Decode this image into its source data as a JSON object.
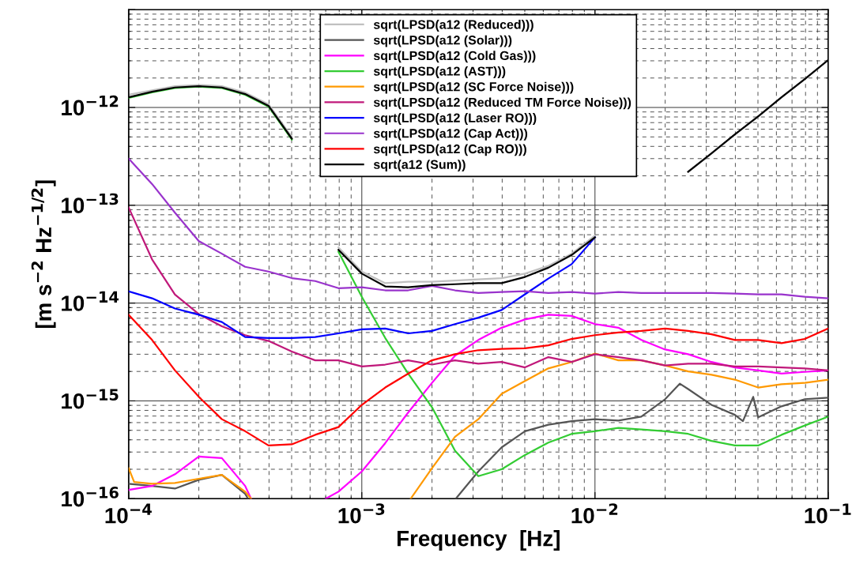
{
  "chart_data": {
    "type": "line",
    "xlabel": "Frequency  [Hz]",
    "ylabel": "[m s$^{−2}$ Hz$^{−1/2}$]",
    "log": "xy",
    "grid": true,
    "legend": "top",
    "line_style": "solid",
    "marker": "none",
    "xlim": [
      0.0001,
      0.1
    ],
    "ylim": [
      1e-16,
      1e-11
    ],
    "xticks": [
      {
        "value": 0.0001,
        "label": "10$^{−4}$"
      },
      {
        "value": 0.001,
        "label": "10$^{−3}$"
      },
      {
        "value": 0.01,
        "label": "10$^{−2}$"
      },
      {
        "value": 0.1,
        "label": "10$^{−1}$"
      }
    ],
    "yticks": [
      {
        "value": 1e-16,
        "label": "10$^{−16}$"
      },
      {
        "value": 1e-15,
        "label": "10$^{−15}$"
      },
      {
        "value": 1e-14,
        "label": "10$^{−14}$"
      },
      {
        "value": 1e-13,
        "label": "10$^{−13}$"
      },
      {
        "value": 1e-12,
        "label": "10$^{−12}$"
      },
      {
        "value": 1e-11,
        "label": null
      }
    ],
    "x": [
      0.0001,
      0.000126,
      0.000158,
      0.0002,
      0.000251,
      0.000316,
      0.000398,
      0.000501,
      0.000631,
      0.000794,
      0.001,
      0.00126,
      0.00158,
      0.002,
      0.00251,
      0.00316,
      0.00398,
      0.00501,
      0.00631,
      0.00794,
      0.01,
      0.0126,
      0.0158,
      0.02,
      0.0251,
      0.0316,
      0.0398,
      0.0501,
      0.0631,
      0.0794,
      0.1
    ],
    "series": [
      {
        "name": "sqrt(LPSD(a12 (Reduced)))",
        "color": "#c0c0c0",
        "values": [
          1.35e-12,
          1.5e-12,
          1.65e-12,
          1.7e-12,
          1.65e-12,
          1.42e-12,
          1.08e-12,
          5e-13,
          null,
          3.7e-14,
          2.1e-14,
          1.6e-14,
          1.65e-14,
          1.65e-14,
          1.7e-14,
          1.75e-14,
          1.8e-14,
          2e-14,
          2.4e-14,
          3.2e-14,
          4.9e-14,
          null,
          null,
          null,
          2.2e-13,
          3.4e-13,
          5.3e-13,
          8.1e-13,
          1.27e-12,
          1.95e-12,
          3.05e-12
        ]
      },
      {
        "name": "sqrt(LPSD(a12 (Solar)))",
        "color": "#555555",
        "x": [
          0.0001,
          0.000126,
          0.000158,
          0.0002,
          0.000251,
          0.000316,
          0.000325,
          0.001,
          0.00253,
          0.00316,
          0.00398,
          0.00501,
          0.00631,
          0.00794,
          0.01,
          0.0126,
          0.0158,
          0.02,
          0.0231,
          0.0251,
          0.0316,
          0.0398,
          0.0431,
          0.0477,
          0.0501,
          0.0631,
          0.0794,
          0.1
        ],
        "values": [
          1.42e-16,
          1.35e-16,
          1.27e-16,
          1.56e-16,
          1.75e-16,
          1.12e-16,
          1e-16,
          null,
          1e-16,
          1.9e-16,
          3.35e-16,
          4.9e-16,
          5.7e-16,
          6.2e-16,
          6.5e-16,
          6.3e-16,
          6.9e-16,
          1.04e-15,
          1.5e-15,
          1.32e-15,
          9.1e-16,
          7.2e-16,
          6.2e-16,
          1.1e-15,
          6.8e-16,
          8.8e-16,
          1.04e-15,
          1.08e-15
        ]
      },
      {
        "name": "sqrt(LPSD(a12 (Cold Gas)))",
        "color": "#ff00ff",
        "x": [
          0.0001,
          0.000126,
          0.000158,
          0.0002,
          0.000251,
          0.000316,
          0.000335,
          0.0005,
          0.0007,
          0.000794,
          0.001,
          0.00126,
          0.00158,
          0.002,
          0.00251,
          0.00316,
          0.00398,
          0.00501,
          0.00631,
          0.00794,
          0.01,
          0.0126,
          0.0158,
          0.02,
          0.0251,
          0.0316,
          0.0398,
          0.0501,
          0.0631,
          0.0794,
          0.1
        ],
        "values": [
          1.23e-16,
          1.35e-16,
          1.78e-16,
          2.7e-16,
          2.6e-16,
          1.35e-16,
          1e-16,
          null,
          1e-16,
          1.18e-16,
          1.9e-16,
          3.7e-16,
          7.6e-16,
          1.53e-15,
          2.9e-15,
          4.2e-15,
          5.6e-15,
          6.8e-15,
          7.6e-15,
          7.4e-15,
          6.1e-15,
          5.6e-15,
          4.2e-15,
          3.35e-15,
          3e-15,
          2.5e-15,
          2.2e-15,
          2.05e-15,
          1.9e-15,
          1.98e-15,
          2.05e-15
        ]
      },
      {
        "name": "sqrt(LPSD(a12 (AST)))",
        "color": "#33cc33",
        "values": [
          1.25e-12,
          1.43e-12,
          1.58e-12,
          1.63e-12,
          1.58e-12,
          1.35e-12,
          1.02e-12,
          4.7e-13,
          null,
          3.35e-14,
          1.16e-14,
          4.4e-15,
          1.9e-15,
          8.6e-16,
          3.1e-16,
          1.7e-16,
          2e-16,
          2.8e-16,
          3.75e-16,
          4.6e-16,
          4.9e-16,
          5.3e-16,
          5.1e-16,
          4.9e-16,
          4.6e-16,
          3.9e-16,
          3.5e-16,
          3.5e-16,
          4.5e-16,
          5.6e-16,
          6.9e-16
        ]
      },
      {
        "name": "sqrt(LPSD(a12 (SC Force Noise)))",
        "color": "#ff9900",
        "x": [
          0.0001,
          0.0001056,
          0.000126,
          0.000158,
          0.0002,
          0.000251,
          0.000316,
          0.000335,
          0.001,
          0.00162,
          0.002,
          0.00251,
          0.00316,
          0.00398,
          0.00501,
          0.00631,
          0.00794,
          0.01,
          0.0126,
          0.0158,
          0.02,
          0.0251,
          0.0316,
          0.0398,
          0.0501,
          0.0631,
          0.0794,
          0.1
        ],
        "values": [
          2.05e-16,
          1.48e-16,
          1.42e-16,
          1.45e-16,
          1.6e-16,
          1.75e-16,
          1.18e-16,
          1e-16,
          null,
          1e-16,
          2.05e-16,
          4.3e-16,
          6.5e-16,
          1.18e-15,
          1.6e-15,
          2.15e-15,
          2.5e-15,
          3.05e-15,
          2.6e-15,
          2.6e-15,
          2.3e-15,
          2e-15,
          1.85e-15,
          1.65e-15,
          1.37e-15,
          1.48e-15,
          1.53e-15,
          1.65e-15
        ]
      },
      {
        "name": "sqrt(LPSD(a12 (Reduced TM Force Noise)))",
        "color": "#c0187a",
        "values": [
          9.5e-14,
          2.8e-14,
          1.22e-14,
          7.7e-15,
          5.8e-15,
          4.7e-15,
          4.1e-15,
          3.2e-15,
          2.6e-15,
          2.6e-15,
          2.25e-15,
          2.35e-15,
          2.6e-15,
          2.35e-15,
          2.6e-15,
          2.4e-15,
          2.5e-15,
          2.2e-15,
          2.8e-15,
          2.5e-15,
          3e-15,
          2.8e-15,
          2.6e-15,
          2.3e-15,
          2.4e-15,
          2.4e-15,
          2.25e-15,
          2.25e-15,
          2.2e-15,
          2.15e-15,
          2.05e-15
        ]
      },
      {
        "name": "sqrt(LPSD(a12 (Laser RO)))",
        "color": "#0000ff",
        "values": [
          1.32e-14,
          1.12e-14,
          8.8e-15,
          7.6e-15,
          6.4e-15,
          4.5e-15,
          4.4e-15,
          4.4e-15,
          4.5e-15,
          4.9e-15,
          5.4e-15,
          5.5e-15,
          4.9e-15,
          5.2e-15,
          6.1e-15,
          7.1e-15,
          8.5e-15,
          1.23e-14,
          1.78e-14,
          2.5e-14,
          4.7e-14,
          null,
          null,
          null,
          null,
          null,
          null,
          null,
          null,
          null,
          null
        ]
      },
      {
        "name": "sqrt(LPSD(a12 (Cap Act)))",
        "color": "#9933cc",
        "values": [
          3e-13,
          1.65e-13,
          8.4e-14,
          4.3e-14,
          3.2e-14,
          2.35e-14,
          2.1e-14,
          1.8e-14,
          1.68e-14,
          1.42e-14,
          1.45e-14,
          1.35e-14,
          1.35e-14,
          1.5e-14,
          1.35e-14,
          1.27e-14,
          1.3e-14,
          1.32e-14,
          1.27e-14,
          1.3e-14,
          1.25e-14,
          1.3e-14,
          1.27e-14,
          1.27e-14,
          1.27e-14,
          1.27e-14,
          1.25e-14,
          1.23e-14,
          1.23e-14,
          1.16e-14,
          1.12e-14
        ]
      },
      {
        "name": "sqrt(LPSD(a12 (Cap RO)))",
        "color": "#ff0000",
        "values": [
          7.6e-15,
          4.2e-15,
          2.05e-15,
          1.1e-15,
          6.5e-16,
          4.9e-16,
          3.5e-16,
          3.6e-16,
          4.5e-16,
          5.4e-16,
          9.1e-16,
          1.37e-15,
          1.9e-15,
          2.6e-15,
          3e-15,
          3.3e-15,
          3.4e-15,
          3.45e-15,
          3.7e-15,
          4.3e-15,
          4.7e-15,
          5e-15,
          5.2e-15,
          5.5e-15,
          5.2e-15,
          4.8e-15,
          4.2e-15,
          4.2e-15,
          3.9e-15,
          4.3e-15,
          5.5e-15
        ]
      },
      {
        "name": "sqrt(a12 (Sum))",
        "color": "#000000",
        "values": [
          1.27e-12,
          1.45e-12,
          1.6e-12,
          1.65e-12,
          1.6e-12,
          1.37e-12,
          1.04e-12,
          4.8e-13,
          null,
          3.5e-14,
          2e-14,
          1.48e-14,
          1.45e-14,
          1.53e-14,
          1.56e-14,
          1.6e-14,
          1.6e-14,
          1.85e-14,
          2.3e-14,
          3.1e-14,
          4.7e-14,
          null,
          null,
          null,
          2.2e-13,
          3.4e-13,
          5.3e-13,
          8.1e-13,
          1.27e-12,
          1.95e-12,
          3.05e-12
        ]
      }
    ]
  }
}
